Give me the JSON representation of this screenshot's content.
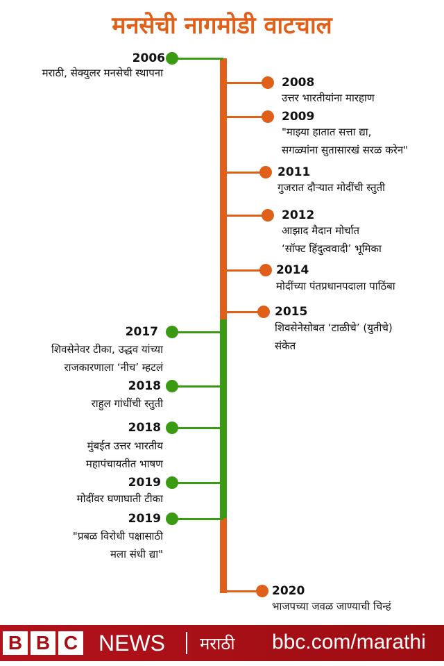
{
  "title": "मनसेची नागमोडी वाटचाल",
  "colors": {
    "orange": "#e0601a",
    "green": "#3a9a12",
    "footer": "#a50f16"
  },
  "events": [
    {
      "year": "2006",
      "side": "left",
      "color": "green",
      "lines": [
        "मराठी, सेक्युलर मनसेची स्थापना"
      ]
    },
    {
      "year": "2008",
      "side": "right",
      "color": "orange",
      "lines": [
        "उत्तर भारतीयांना मारहाण"
      ]
    },
    {
      "year": "2009",
      "side": "right",
      "color": "orange",
      "lines": [
        "\"माझ्या हातात सत्ता द्या,",
        "सगळ्यांना सुतासारखं सरळ करेन\""
      ]
    },
    {
      "year": "2011",
      "side": "right",
      "color": "orange",
      "lines": [
        "गुजरात दौऱ्यात मोदींची स्तुती"
      ]
    },
    {
      "year": "2012",
      "side": "right",
      "color": "orange",
      "lines": [
        "आझाद मैदान मोर्चात",
        "‘सॉफ्ट हिंदुत्ववादी’ भूमिका"
      ]
    },
    {
      "year": "2014",
      "side": "right",
      "color": "orange",
      "lines": [
        "मोदींच्या पंतप्रधानपदाला पाठिंबा"
      ]
    },
    {
      "year": "2015",
      "side": "right",
      "color": "orange",
      "lines": [
        "शिवसेनेसोबत ‘टाळीचे’ (युतीचे)",
        "संकेत"
      ]
    },
    {
      "year": "2017",
      "side": "left",
      "color": "green",
      "lines": [
        "शिवसेनेवर टीका, उद्धव यांच्या",
        "राजकारणाला ‘नीच’ म्हटलं"
      ]
    },
    {
      "year": "2018",
      "side": "left",
      "color": "green",
      "lines": [
        "राहुल गांधींची स्तुती"
      ]
    },
    {
      "year": "2018",
      "side": "left",
      "color": "green",
      "lines": [
        "मुंबईत उत्तर भारतीय",
        "महापंचायतीत भाषण"
      ]
    },
    {
      "year": "2019",
      "side": "left",
      "color": "green",
      "lines": [
        "मोदींवर घणाघाती टीका"
      ]
    },
    {
      "year": "2019",
      "side": "left",
      "color": "green",
      "lines": [
        "\"प्रबळ विरोधी पक्षासाठी",
        "मला संधी द्या\""
      ]
    },
    {
      "year": "2020",
      "side": "right",
      "color": "orange",
      "lines": [
        "भाजपच्या जवळ जाण्याची चिन्हं"
      ]
    }
  ],
  "footer": {
    "bbc_letters": [
      "B",
      "B",
      "C"
    ],
    "news": "NEWS",
    "language": "मराठी",
    "url": "bbc.com/marathi"
  }
}
